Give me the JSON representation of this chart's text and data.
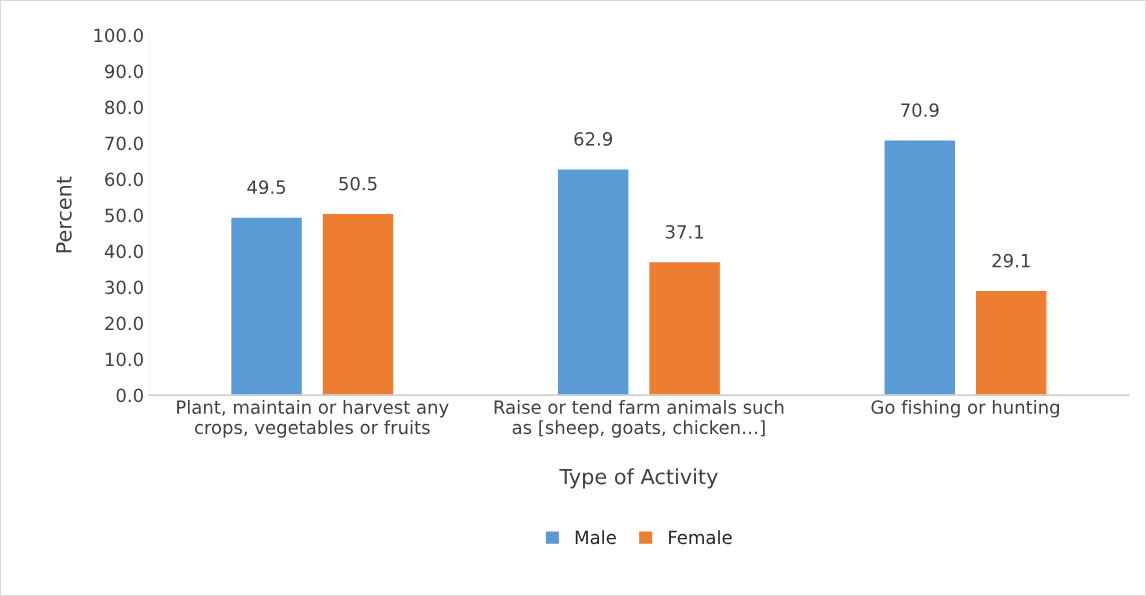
{
  "chart_data": {
    "type": "bar",
    "xlabel": "Type of Activity",
    "ylabel": "Percent",
    "categories": [
      "Plant, maintain or harvest any\ncrops, vegetables or fruits",
      "Raise or tend farm animals such\nas [sheep, goats, chicken…]",
      "Go fishing or hunting"
    ],
    "series": [
      {
        "name": "Male",
        "color": "#5b9bd5",
        "values": [
          49.5,
          62.9,
          70.9
        ]
      },
      {
        "name": "Female",
        "color": "#ed7d31",
        "values": [
          50.5,
          37.1,
          29.1
        ]
      }
    ],
    "ylim": [
      0,
      100
    ],
    "yticks": [
      {
        "value": 0,
        "label": "0.0"
      },
      {
        "value": 10,
        "label": "10.0"
      },
      {
        "value": 20,
        "label": "20.0"
      },
      {
        "value": 30,
        "label": "30.0"
      },
      {
        "value": 40,
        "label": "40.0"
      },
      {
        "value": 50,
        "label": "50.0"
      },
      {
        "value": 60,
        "label": "60.0"
      },
      {
        "value": 70,
        "label": "70.0"
      },
      {
        "value": 80,
        "label": "80.0"
      },
      {
        "value": 90,
        "label": "90.0"
      },
      {
        "value": 100,
        "label": "100.0"
      }
    ],
    "data_labels": true,
    "grid": false,
    "legend": "bottom"
  }
}
